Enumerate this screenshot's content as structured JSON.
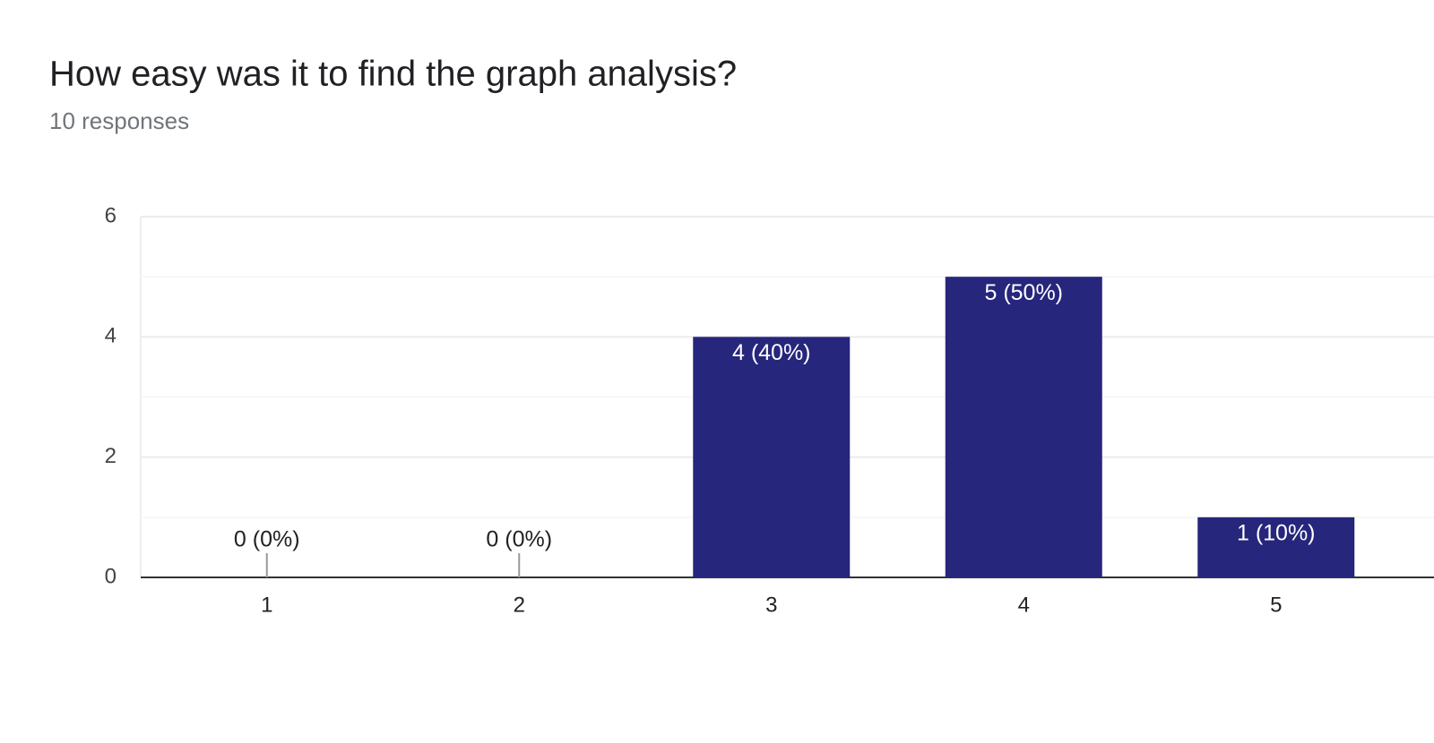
{
  "chart_data": {
    "type": "bar",
    "title": "How easy was it to find the graph analysis?",
    "subtitle": "10 responses",
    "categories": [
      "1",
      "2",
      "3",
      "4",
      "5"
    ],
    "values": [
      0,
      0,
      4,
      5,
      1
    ],
    "value_labels": [
      "0 (0%)",
      "0 (0%)",
      "4 (40%)",
      "5 (50%)",
      "1 (10%)"
    ],
    "color": "#26267d",
    "ylim": [
      0,
      6
    ],
    "yticks": [
      0,
      2,
      4,
      6
    ],
    "minor_yticks": [
      1,
      3,
      5
    ],
    "grid": true
  }
}
